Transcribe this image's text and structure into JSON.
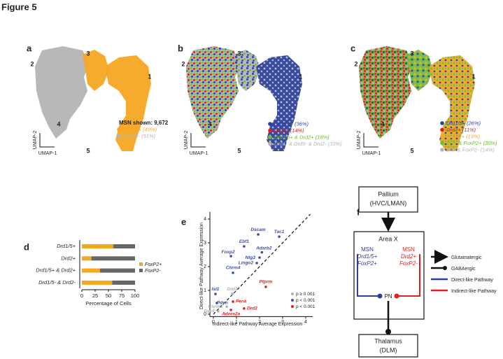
{
  "figure_title": "Figure 5",
  "panels": {
    "a": {
      "label": "a",
      "clusters": [
        "2",
        "3",
        "1",
        "4",
        "5"
      ],
      "note": "MSN shown: 9,672",
      "legend": [
        {
          "text": "FoxP2+ (49%)",
          "color": "#f5a623"
        },
        {
          "text": "FoxP2- (51%)",
          "color": "#b4b4b4"
        }
      ],
      "x_axis": "UMAP-1",
      "y_axis": "UMAP-2"
    },
    "b": {
      "label": "b",
      "clusters": [
        "2",
        "3",
        "1",
        "4",
        "5"
      ],
      "legend": [
        {
          "text": "Drd1/5+ (36%)",
          "color": "#2b3f9e"
        },
        {
          "text": "Drd2+ (14%)",
          "color": "#e02020"
        },
        {
          "text": "Drd1/5+ & Drd2+ (18%)",
          "color": "#6cbf3c"
        },
        {
          "text": "Drd1- & Drd5- & Drd2- (33%)",
          "color": "#b4b4b4"
        }
      ],
      "x_axis": "UMAP-1",
      "y_axis": "UMAP-2"
    },
    "c": {
      "label": "c",
      "clusters": [
        "2",
        "3",
        "1",
        "4",
        "5"
      ],
      "legend": [
        {
          "text": "Drd1/5+ (26%)",
          "color": "#2b3f9e"
        },
        {
          "text": "Drd2+ (11%)",
          "color": "#e02020"
        },
        {
          "text": "FoxP2+ (19%)",
          "color": "#f5a623"
        },
        {
          "text": "DR+ & FoxP2+ (30%)",
          "color": "#6cbf3c"
        },
        {
          "text": "DR- & FoxP2- (14%)",
          "color": "#b4b4b4"
        }
      ],
      "x_axis": "UMAP-1",
      "y_axis": "UMAP-2"
    },
    "d": {
      "label": "d"
    },
    "e": {
      "label": "e"
    },
    "f": {
      "label": "f",
      "pallium": [
        "Pallium",
        "(HVC/LMAN)"
      ],
      "area_x": "Area X",
      "msn_direct": [
        "MSN",
        "Drd1/5+",
        "FoxP2+"
      ],
      "msn_indirect": [
        "MSN",
        "Drd2+",
        "FoxP2-"
      ],
      "pn": "PN",
      "thalamus": [
        "Thalamus",
        "(DLM)"
      ],
      "legend": [
        "Glutamatergic",
        "GABAergic",
        "Direct-like Pathway",
        "Indirect-like Pathway"
      ]
    }
  },
  "chart_data": [
    {
      "type": "bar",
      "orientation": "horizontal",
      "stacked": true,
      "categories": [
        "Drd1/5+",
        "Drd2+",
        "Drd1/5+ & Drd2+",
        "Drd1/5- & Drd2-"
      ],
      "series": [
        {
          "name": "FoxP2+",
          "color": "#f5a81c",
          "values": [
            59,
            18,
            34,
            57
          ]
        },
        {
          "name": "FoxP2-",
          "color": "#666666",
          "values": [
            41,
            82,
            66,
            43
          ]
        }
      ],
      "xlim": [
        0,
        100
      ],
      "xticks": [
        0,
        25,
        50,
        75,
        100
      ],
      "xlabel": "Percentage of Cells",
      "legend": "right"
    },
    {
      "type": "scatter",
      "xlabel": "Indirect-like Pathway Average Expression",
      "ylabel": "Direct-like Pathway Average Expression",
      "xlim": [
        -0.15,
        4.3
      ],
      "ylim": [
        -0.1,
        4.3
      ],
      "xticks": [
        0,
        1,
        2,
        3,
        4
      ],
      "yticks": [
        0,
        1,
        2,
        3,
        4
      ],
      "diagonal": true,
      "legend": "lower right",
      "series": [
        {
          "name": "p ≥ 0.001",
          "color": "#b0b0b0",
          "labels": [
            "Drd1",
            "Chrm3",
            "Gpr6"
          ],
          "x": [
            0.82,
            0.58,
            0.21
          ],
          "values": [
            0.85,
            0.32,
            0.12
          ]
        },
        {
          "name": "p < 0.001",
          "color": "#3a4fa8",
          "labels": [
            "Dscam",
            "Tac1",
            "Ebf1",
            "Adarb2",
            "Foxp2",
            "Ntg3",
            "Lingo2",
            "Chrm4",
            "Isl1",
            "Pdyn"
          ],
          "x": [
            1.94,
            2.85,
            1.33,
            2.1,
            0.76,
            2.0,
            1.88,
            0.85,
            0.09,
            0.15
          ],
          "values": [
            3.35,
            3.26,
            2.85,
            2.6,
            2.44,
            2.38,
            2.15,
            1.74,
            0.85,
            0.47
          ]
        },
        {
          "name": "p < 0.001",
          "color": "#e02020",
          "labels": [
            "Ptprm",
            "Penk",
            "Drd2",
            "Adora2a"
          ],
          "x": [
            2.27,
            0.85,
            1.33,
            0.76
          ],
          "values": [
            1.15,
            0.53,
            0.24,
            0.18
          ]
        }
      ]
    }
  ]
}
